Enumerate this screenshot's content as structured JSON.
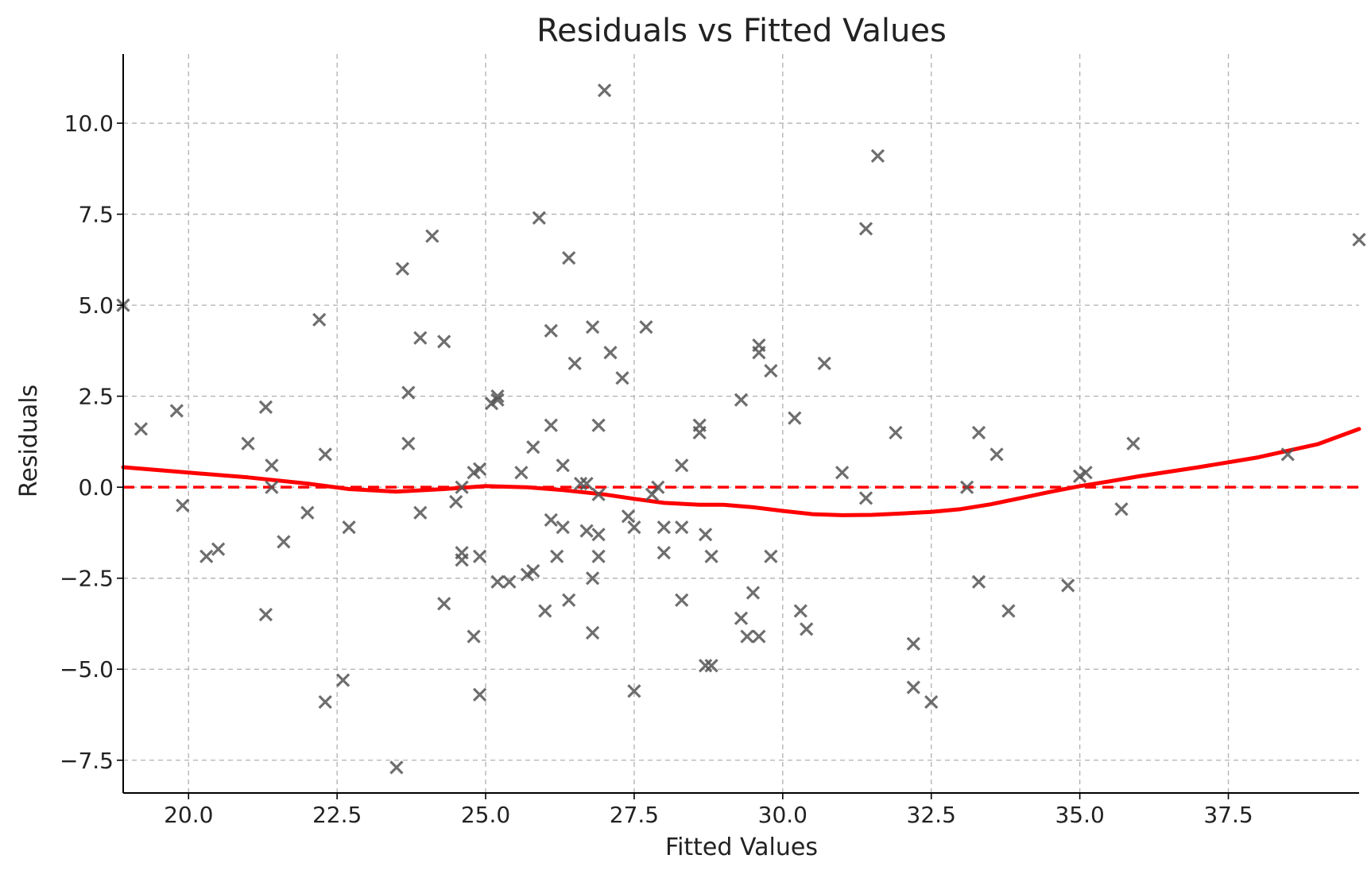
{
  "chart_data": {
    "type": "scatter",
    "title": "Residuals vs Fitted Values",
    "xlabel": "Fitted Values",
    "ylabel": "Residuals",
    "xlim": [
      18.9,
      39.7
    ],
    "ylim": [
      -8.4,
      11.9
    ],
    "xticks": [
      20.0,
      22.5,
      25.0,
      27.5,
      30.0,
      32.5,
      35.0,
      37.5
    ],
    "xtick_labels": [
      "20.0",
      "22.5",
      "25.0",
      "27.5",
      "30.0",
      "32.5",
      "35.0",
      "37.5"
    ],
    "yticks": [
      10.0,
      7.5,
      5.0,
      2.5,
      0.0,
      -2.5,
      -5.0,
      -7.5
    ],
    "ytick_labels": [
      "10.0",
      "7.5",
      "5.0",
      "2.5",
      "0.0",
      "−2.5",
      "−5.0",
      "−7.5"
    ],
    "grid": true,
    "series": [
      {
        "marker": "x",
        "color": "#555555",
        "points": [
          [
            18.9,
            5.0
          ],
          [
            19.2,
            1.6
          ],
          [
            19.8,
            2.1
          ],
          [
            19.9,
            -0.5
          ],
          [
            20.3,
            -1.9
          ],
          [
            20.5,
            -1.7
          ],
          [
            21.0,
            1.2
          ],
          [
            21.3,
            2.2
          ],
          [
            21.3,
            -3.5
          ],
          [
            21.4,
            0.6
          ],
          [
            21.4,
            0.0
          ],
          [
            21.6,
            -1.5
          ],
          [
            22.0,
            -0.7
          ],
          [
            22.2,
            4.6
          ],
          [
            22.3,
            -5.9
          ],
          [
            22.3,
            0.9
          ],
          [
            22.6,
            -5.3
          ],
          [
            22.7,
            -1.1
          ],
          [
            23.5,
            -7.7
          ],
          [
            23.6,
            6.0
          ],
          [
            23.7,
            2.6
          ],
          [
            23.7,
            1.2
          ],
          [
            23.9,
            4.1
          ],
          [
            23.9,
            -0.7
          ],
          [
            24.1,
            6.9
          ],
          [
            24.3,
            -3.2
          ],
          [
            24.3,
            4.0
          ],
          [
            24.5,
            -0.4
          ],
          [
            24.6,
            0.0
          ],
          [
            24.6,
            -1.8
          ],
          [
            24.6,
            -2.0
          ],
          [
            24.8,
            0.4
          ],
          [
            24.8,
            -4.1
          ],
          [
            24.9,
            0.5
          ],
          [
            24.9,
            -1.9
          ],
          [
            24.9,
            -5.7
          ],
          [
            25.1,
            2.3
          ],
          [
            25.2,
            2.5
          ],
          [
            25.2,
            2.4
          ],
          [
            25.2,
            -2.6
          ],
          [
            25.4,
            -2.6
          ],
          [
            25.6,
            0.4
          ],
          [
            25.7,
            -2.4
          ],
          [
            25.8,
            1.1
          ],
          [
            25.8,
            -2.3
          ],
          [
            25.9,
            7.4
          ],
          [
            26.0,
            -3.4
          ],
          [
            26.1,
            4.3
          ],
          [
            26.1,
            -0.9
          ],
          [
            26.1,
            1.7
          ],
          [
            26.2,
            -1.9
          ],
          [
            26.3,
            0.6
          ],
          [
            26.3,
            -1.1
          ],
          [
            26.4,
            6.3
          ],
          [
            26.4,
            -3.1
          ],
          [
            26.5,
            3.4
          ],
          [
            26.6,
            0.1
          ],
          [
            26.7,
            0.1
          ],
          [
            26.7,
            -1.2
          ],
          [
            26.8,
            -2.5
          ],
          [
            26.8,
            4.4
          ],
          [
            26.8,
            -4.0
          ],
          [
            26.9,
            -1.3
          ],
          [
            26.9,
            -0.2
          ],
          [
            26.9,
            1.7
          ],
          [
            26.9,
            -1.9
          ],
          [
            27.0,
            10.9
          ],
          [
            27.1,
            3.7
          ],
          [
            27.3,
            3.0
          ],
          [
            27.4,
            -0.8
          ],
          [
            27.5,
            -1.1
          ],
          [
            27.5,
            -5.6
          ],
          [
            27.7,
            4.4
          ],
          [
            27.8,
            -0.2
          ],
          [
            27.9,
            0.0
          ],
          [
            28.0,
            -1.8
          ],
          [
            28.0,
            -1.1
          ],
          [
            28.3,
            0.6
          ],
          [
            28.3,
            -1.1
          ],
          [
            28.3,
            -3.1
          ],
          [
            28.6,
            1.7
          ],
          [
            28.6,
            1.5
          ],
          [
            28.7,
            -1.3
          ],
          [
            28.7,
            -4.9
          ],
          [
            28.8,
            -4.9
          ],
          [
            28.8,
            -1.9
          ],
          [
            29.3,
            2.4
          ],
          [
            29.3,
            -3.6
          ],
          [
            29.4,
            -4.1
          ],
          [
            29.5,
            -2.9
          ],
          [
            29.6,
            3.7
          ],
          [
            29.6,
            -4.1
          ],
          [
            29.6,
            3.9
          ],
          [
            29.8,
            3.2
          ],
          [
            29.8,
            -1.9
          ],
          [
            30.2,
            1.9
          ],
          [
            30.3,
            -3.4
          ],
          [
            30.4,
            -3.9
          ],
          [
            30.7,
            3.4
          ],
          [
            31.0,
            0.4
          ],
          [
            31.4,
            7.1
          ],
          [
            31.4,
            -0.3
          ],
          [
            31.6,
            9.1
          ],
          [
            31.9,
            1.5
          ],
          [
            32.2,
            -4.3
          ],
          [
            32.2,
            -5.5
          ],
          [
            32.5,
            -5.9
          ],
          [
            33.1,
            0.0
          ],
          [
            33.3,
            1.5
          ],
          [
            33.3,
            -2.6
          ],
          [
            33.6,
            0.9
          ],
          [
            33.8,
            -3.4
          ],
          [
            34.8,
            -2.7
          ],
          [
            35.0,
            0.3
          ],
          [
            35.1,
            0.4
          ],
          [
            35.7,
            -0.6
          ],
          [
            35.9,
            1.2
          ],
          [
            38.5,
            0.9
          ],
          [
            39.7,
            6.8
          ]
        ]
      }
    ],
    "reference_line": {
      "y": 0.0,
      "style": "dashed",
      "color": "#ff0000"
    },
    "smooth_curve": {
      "color": "#ff0000",
      "points": [
        [
          18.9,
          0.55
        ],
        [
          20.0,
          0.4
        ],
        [
          21.0,
          0.27
        ],
        [
          22.0,
          0.1
        ],
        [
          22.7,
          -0.05
        ],
        [
          23.5,
          -0.12
        ],
        [
          24.3,
          -0.05
        ],
        [
          25.0,
          0.03
        ],
        [
          25.7,
          0.0
        ],
        [
          26.3,
          -0.08
        ],
        [
          27.0,
          -0.2
        ],
        [
          27.5,
          -0.32
        ],
        [
          28.0,
          -0.43
        ],
        [
          28.6,
          -0.48
        ],
        [
          29.0,
          -0.48
        ],
        [
          29.5,
          -0.55
        ],
        [
          30.0,
          -0.65
        ],
        [
          30.5,
          -0.74
        ],
        [
          31.0,
          -0.77
        ],
        [
          31.5,
          -0.76
        ],
        [
          32.0,
          -0.72
        ],
        [
          32.5,
          -0.68
        ],
        [
          33.0,
          -0.6
        ],
        [
          33.5,
          -0.47
        ],
        [
          34.0,
          -0.3
        ],
        [
          34.5,
          -0.13
        ],
        [
          35.0,
          0.03
        ],
        [
          35.5,
          0.16
        ],
        [
          36.0,
          0.3
        ],
        [
          37.0,
          0.55
        ],
        [
          38.0,
          0.82
        ],
        [
          39.0,
          1.18
        ],
        [
          39.7,
          1.6
        ]
      ]
    }
  }
}
